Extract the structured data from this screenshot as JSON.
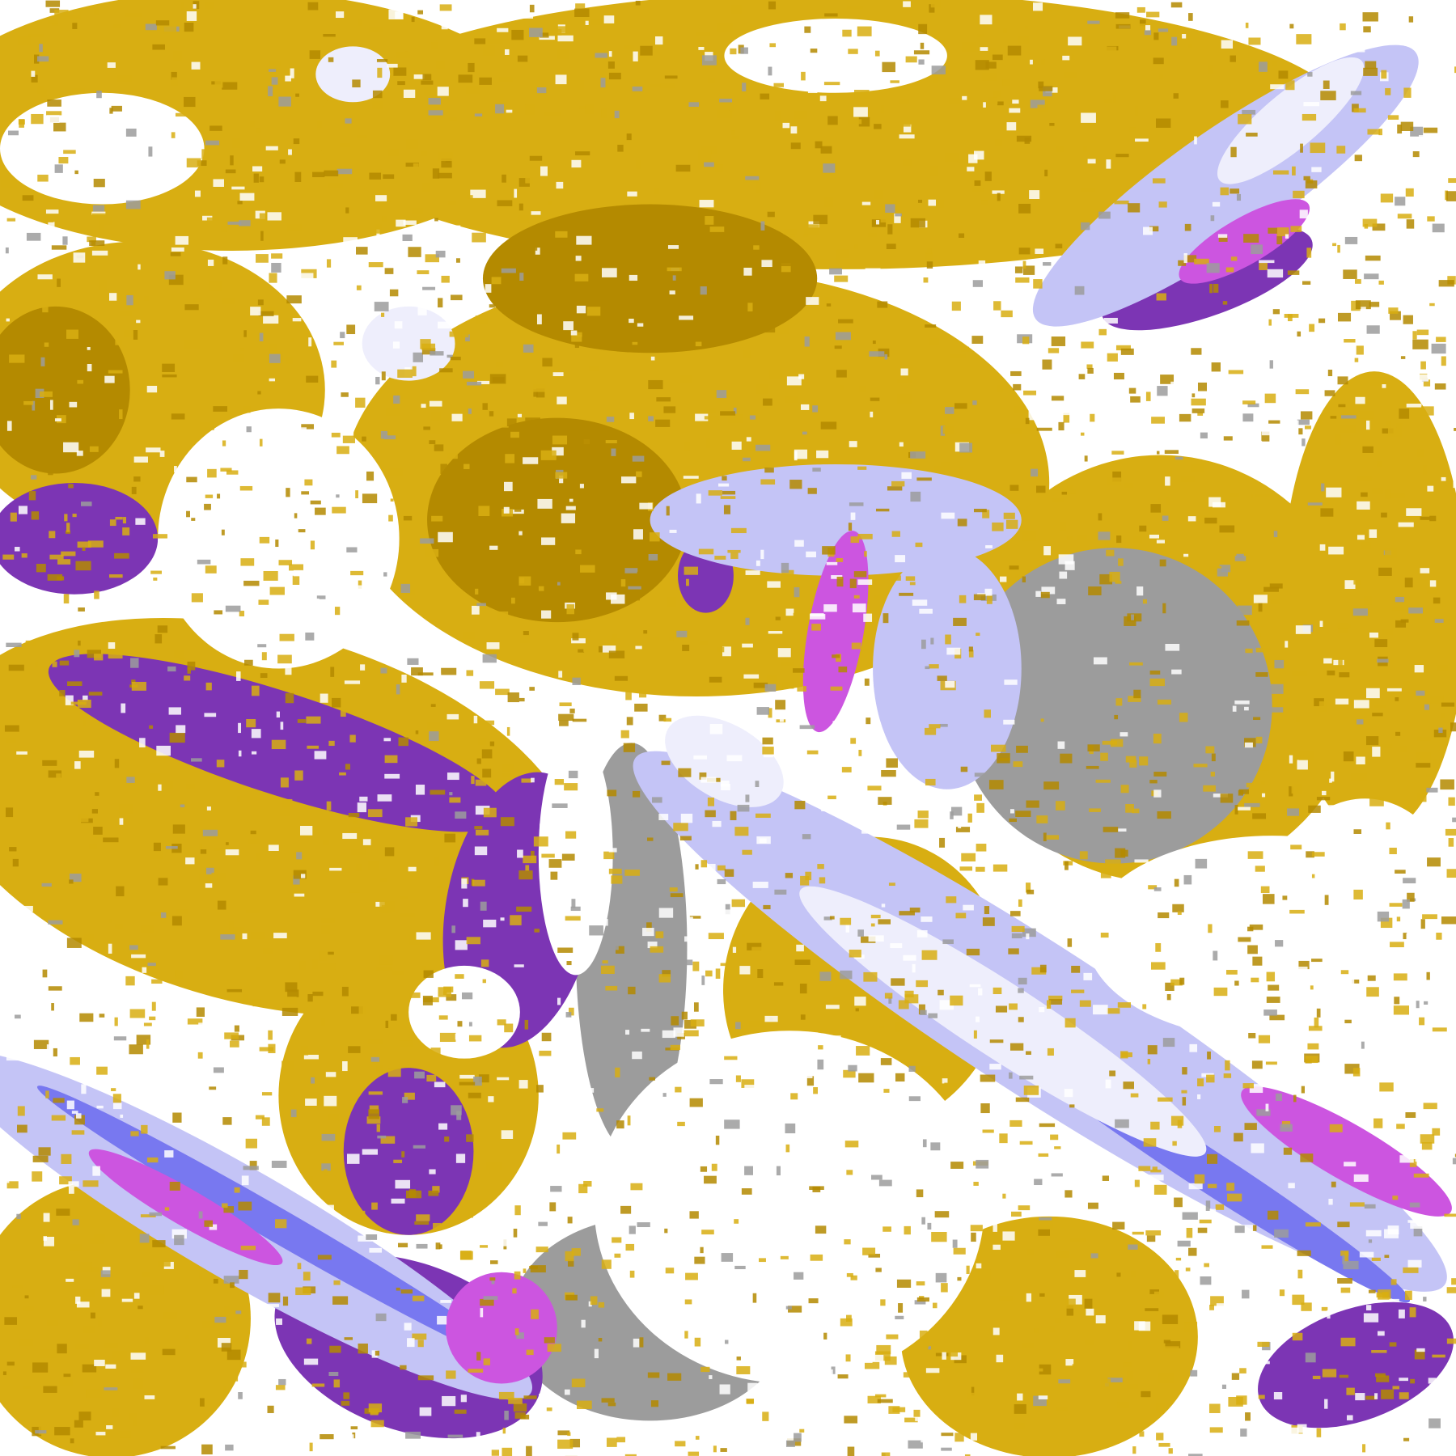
{
  "map": {
    "palette": {
      "background": "#ffffff",
      "gold": "#d8ae12",
      "dark_gold": "#b48a00",
      "purple": "#7c35b4",
      "magenta": "#cc55e0",
      "gray": "#9c9c9c",
      "lavender": "#c4c4f6",
      "periwinkle": "#7878f0",
      "pale": "#eeeefc"
    }
  }
}
